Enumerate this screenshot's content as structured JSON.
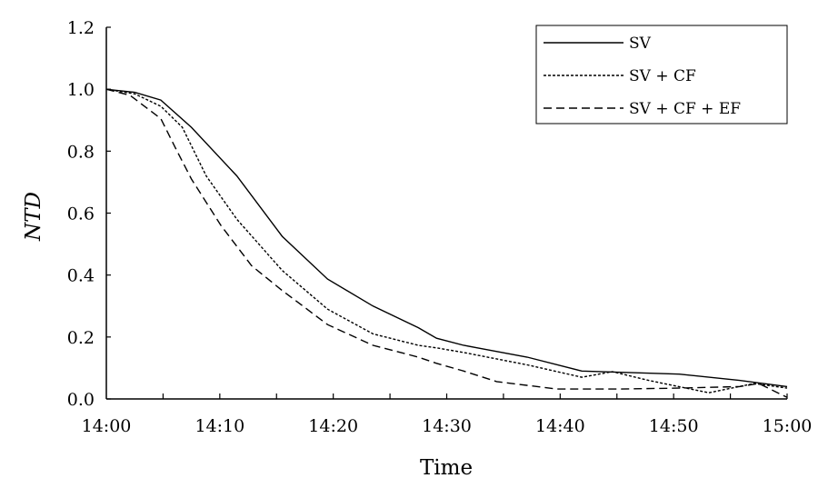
{
  "chart_data": {
    "type": "line",
    "title": "",
    "xlabel": "Time",
    "ylabel": "NTD",
    "xlim": [
      0,
      60
    ],
    "ylim": [
      0,
      1.2
    ],
    "x_tick_labels": [
      "14:00",
      "14:10",
      "14:20",
      "14:30",
      "14:40",
      "14:50",
      "15:00"
    ],
    "x_tick_values": [
      0,
      10,
      20,
      30,
      40,
      50,
      60
    ],
    "y_tick_labels": [
      "0.0",
      "0.2",
      "0.4",
      "0.6",
      "0.8",
      "1.0",
      "1.2"
    ],
    "y_tick_values": [
      0,
      0.2,
      0.4,
      0.6,
      0.8,
      1.0,
      1.2
    ],
    "x_unit": "minutes after 14:00",
    "legend_position": "top-right",
    "series": [
      {
        "name": "SV",
        "style": "solid",
        "x": [
          0,
          2.5,
          4.8,
          7.5,
          11.5,
          15.5,
          19.5,
          23.5,
          27.5,
          29.1,
          31.5,
          37.1,
          41.9,
          50.5,
          55.8,
          60
        ],
        "y": [
          1.0,
          0.99,
          0.965,
          0.877,
          0.72,
          0.525,
          0.387,
          0.3,
          0.23,
          0.196,
          0.173,
          0.135,
          0.09,
          0.08,
          0.06,
          0.04
        ]
      },
      {
        "name": "SV + CF",
        "style": "dotted",
        "x": [
          0,
          2.5,
          4.8,
          6.7,
          8.8,
          11.5,
          15.5,
          19.5,
          23.5,
          27.5,
          29.1,
          31.5,
          37.1,
          41.9,
          44.6,
          47.8,
          53.1,
          57.1,
          60
        ],
        "y": [
          1.0,
          0.985,
          0.945,
          0.877,
          0.72,
          0.58,
          0.415,
          0.29,
          0.21,
          0.173,
          0.165,
          0.15,
          0.11,
          0.07,
          0.088,
          0.06,
          0.02,
          0.05,
          0.035
        ]
      },
      {
        "name": "SV + CF + EF",
        "style": "dashed",
        "x": [
          0,
          2.1,
          4.8,
          6.1,
          7.5,
          10.1,
          12.8,
          15.5,
          19.5,
          23.5,
          27.5,
          29.1,
          31.5,
          34.4,
          39.7,
          45,
          50.4,
          55.8,
          57.5,
          60
        ],
        "y": [
          1.0,
          0.98,
          0.905,
          0.81,
          0.71,
          0.56,
          0.43,
          0.35,
          0.24,
          0.173,
          0.135,
          0.115,
          0.09,
          0.056,
          0.032,
          0.032,
          0.035,
          0.04,
          0.05,
          0.005
        ]
      }
    ]
  }
}
